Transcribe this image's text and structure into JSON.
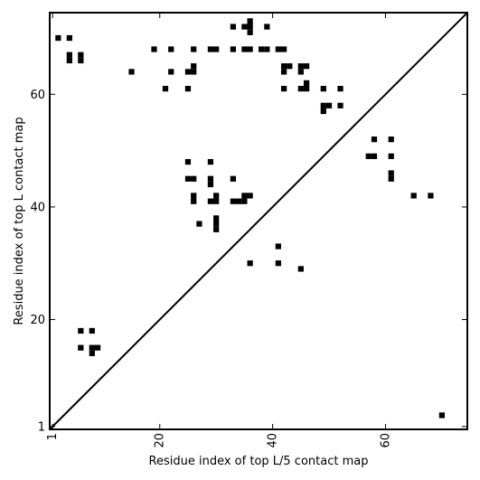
{
  "chart_data": {
    "type": "scatter",
    "title": "",
    "xlabel": "Residue index of top L/5 contact map",
    "ylabel": "Residue index of top L contact map",
    "xlim": [
      0.5,
      74.5
    ],
    "ylim": [
      0.5,
      74.5
    ],
    "x_ticks": [
      1,
      20,
      40,
      60
    ],
    "y_ticks": [
      1,
      20,
      40,
      60
    ],
    "x_tick_labels": [
      "1",
      "20",
      "40",
      "60"
    ],
    "y_tick_labels": [
      "1",
      "20",
      "40",
      "60"
    ],
    "diagonal": true,
    "marker": "square",
    "grid": false,
    "points": [
      [
        2,
        70
      ],
      [
        4,
        70
      ],
      [
        4,
        67
      ],
      [
        4,
        66
      ],
      [
        6,
        67
      ],
      [
        6,
        66
      ],
      [
        15,
        64
      ],
      [
        19,
        68
      ],
      [
        22,
        68
      ],
      [
        22,
        64
      ],
      [
        21,
        61
      ],
      [
        25,
        61
      ],
      [
        25,
        64
      ],
      [
        26,
        64
      ],
      [
        26,
        65
      ],
      [
        26,
        68
      ],
      [
        29,
        68
      ],
      [
        30,
        68
      ],
      [
        33,
        72
      ],
      [
        33,
        68
      ],
      [
        35,
        72
      ],
      [
        36,
        73
      ],
      [
        36,
        72
      ],
      [
        36,
        71
      ],
      [
        35,
        68
      ],
      [
        36,
        68
      ],
      [
        39,
        72
      ],
      [
        38,
        68
      ],
      [
        39,
        68
      ],
      [
        41,
        68
      ],
      [
        42,
        68
      ],
      [
        42,
        65
      ],
      [
        43,
        65
      ],
      [
        42,
        64
      ],
      [
        42,
        61
      ],
      [
        45,
        65
      ],
      [
        46,
        65
      ],
      [
        45,
        64
      ],
      [
        45,
        61
      ],
      [
        46,
        62
      ],
      [
        46,
        61
      ],
      [
        49,
        61
      ],
      [
        49,
        58
      ],
      [
        49,
        57
      ],
      [
        50,
        58
      ],
      [
        52,
        61
      ],
      [
        52,
        58
      ],
      [
        58,
        52
      ],
      [
        61,
        52
      ],
      [
        57,
        49
      ],
      [
        58,
        49
      ],
      [
        61,
        49
      ],
      [
        61,
        46
      ],
      [
        61,
        45
      ],
      [
        65,
        42
      ],
      [
        68,
        42
      ],
      [
        70,
        3
      ],
      [
        25,
        48
      ],
      [
        29,
        48
      ],
      [
        25,
        45
      ],
      [
        26,
        45
      ],
      [
        29,
        45
      ],
      [
        29,
        44
      ],
      [
        33,
        45
      ],
      [
        26,
        42
      ],
      [
        26,
        41
      ],
      [
        29,
        41
      ],
      [
        30,
        42
      ],
      [
        30,
        41
      ],
      [
        33,
        41
      ],
      [
        34,
        41
      ],
      [
        35,
        41
      ],
      [
        35,
        42
      ],
      [
        36,
        42
      ],
      [
        27,
        37
      ],
      [
        30,
        38
      ],
      [
        30,
        37
      ],
      [
        30,
        36
      ],
      [
        36,
        30
      ],
      [
        41,
        33
      ],
      [
        41,
        30
      ],
      [
        45,
        29
      ],
      [
        6,
        18
      ],
      [
        8,
        18
      ],
      [
        6,
        15
      ],
      [
        8,
        15
      ],
      [
        9,
        15
      ],
      [
        8,
        14
      ]
    ]
  }
}
